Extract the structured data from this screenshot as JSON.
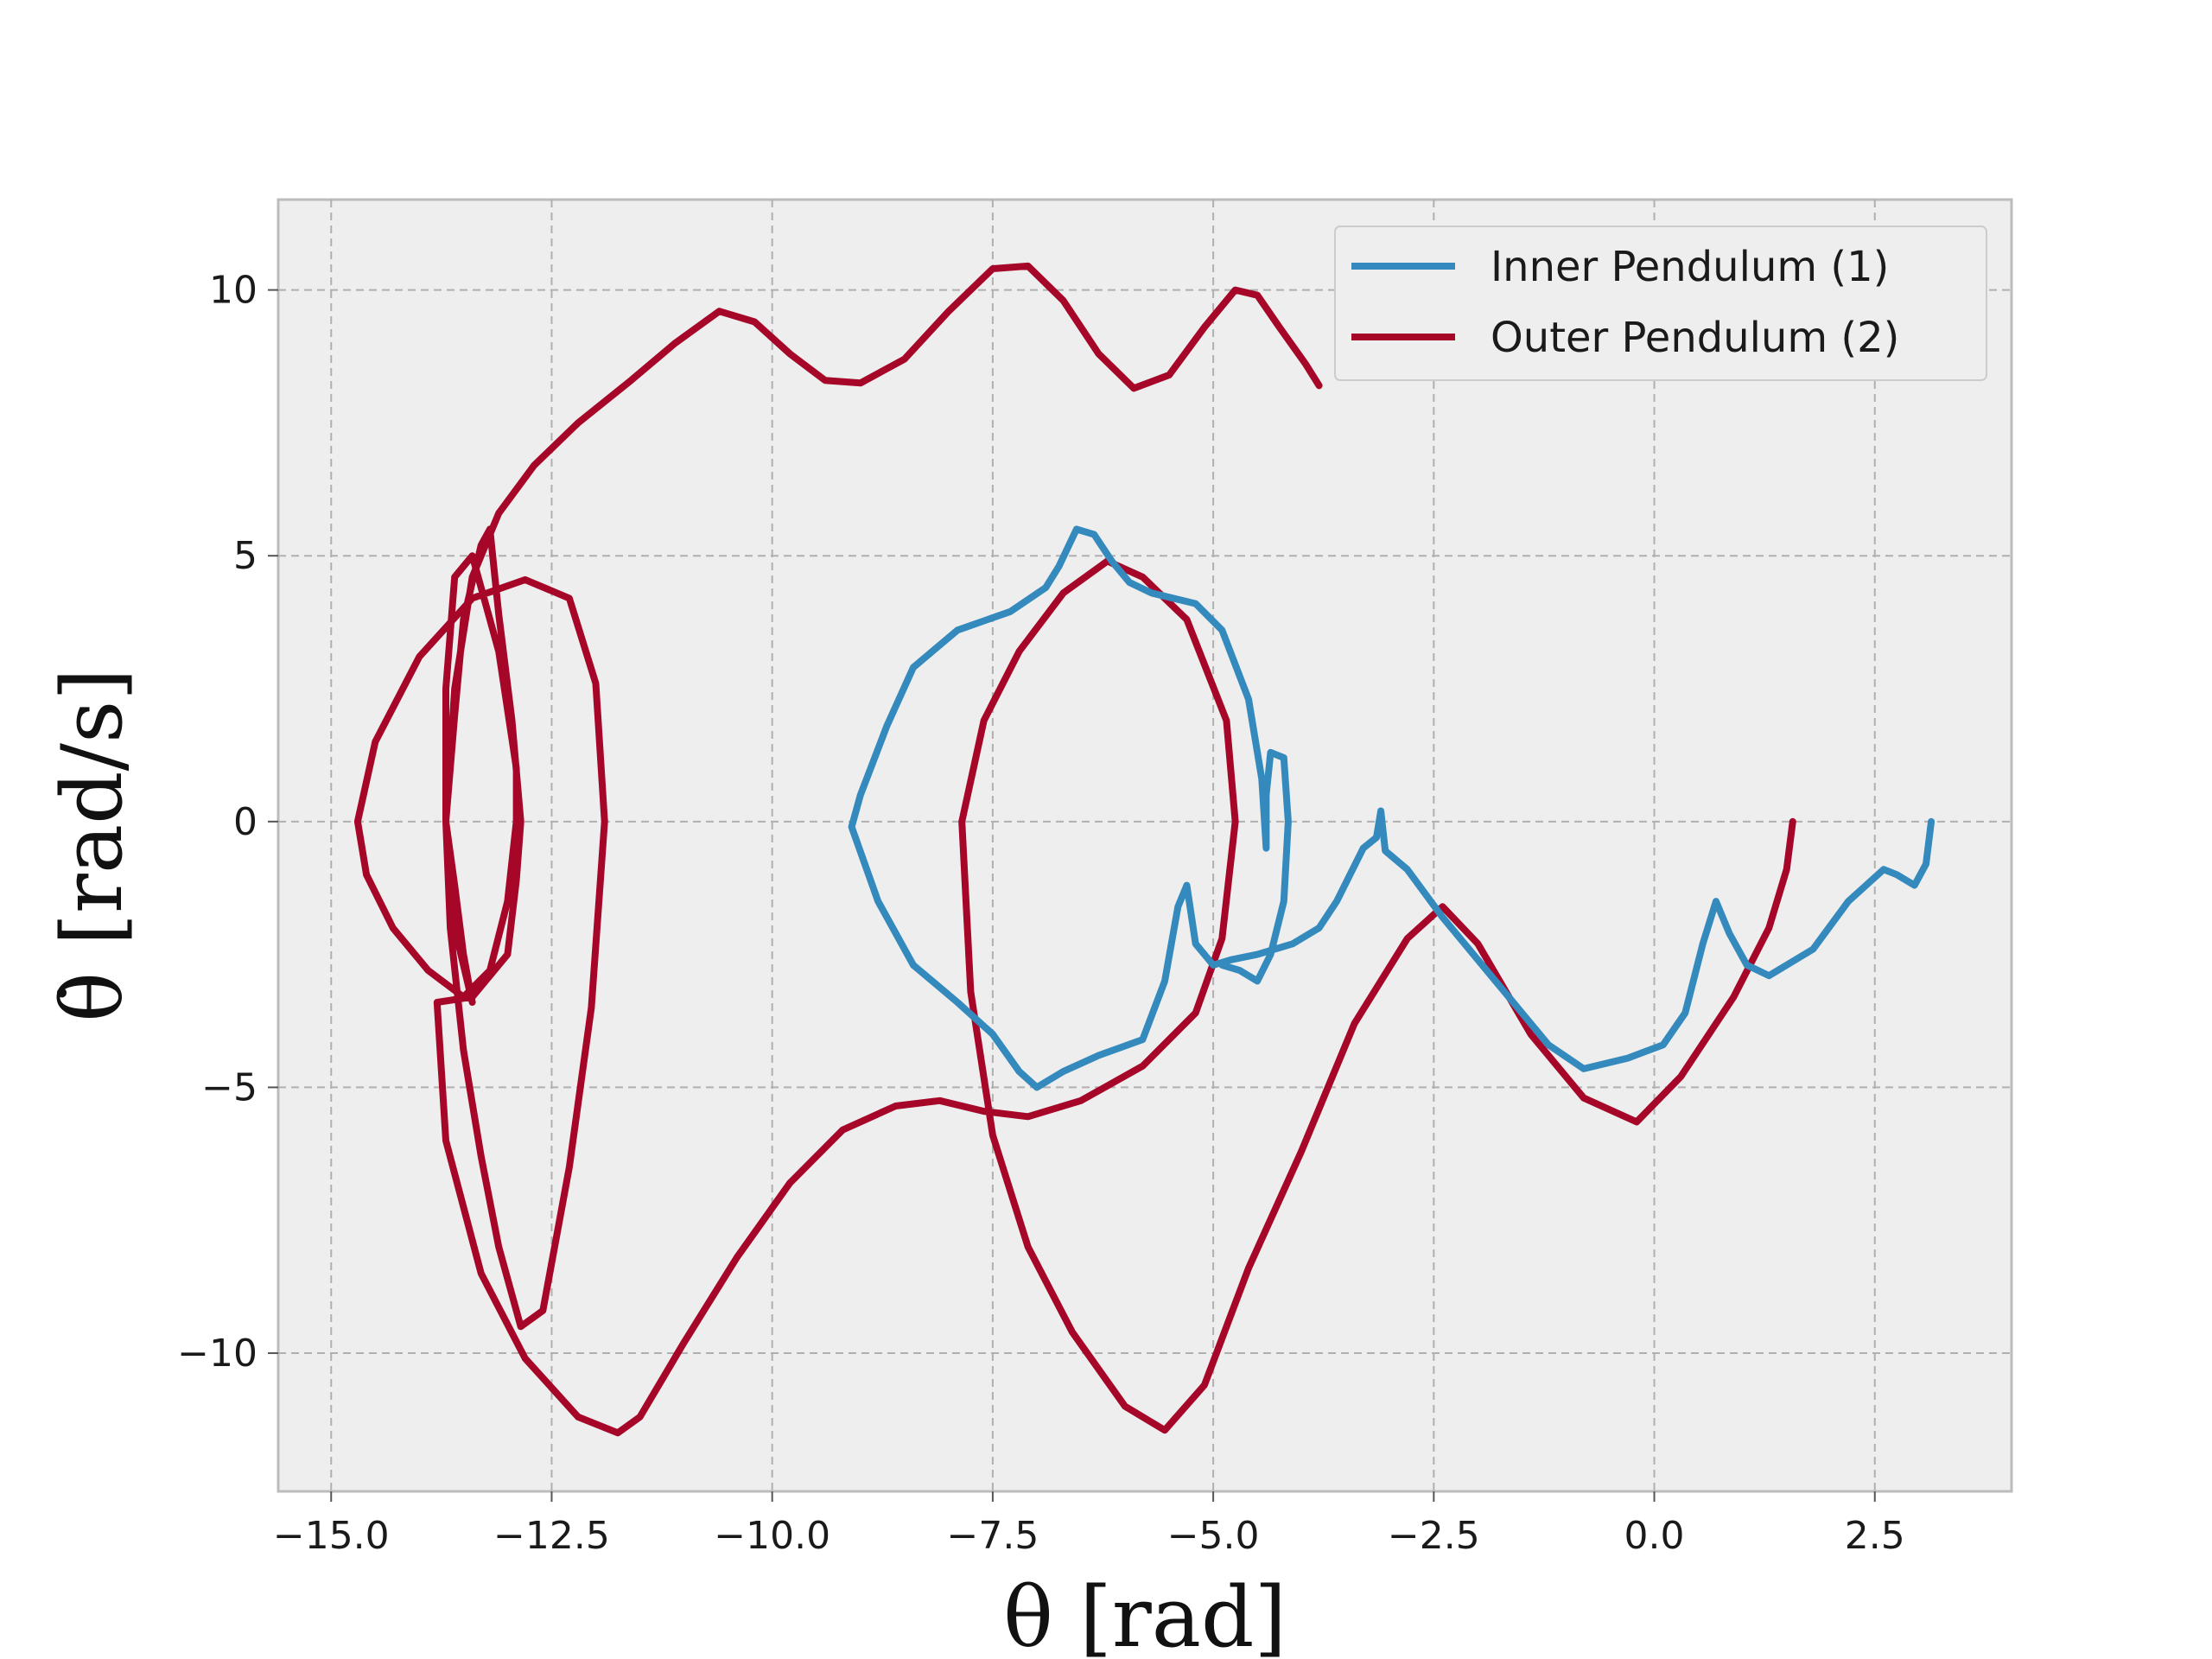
{
  "chart_data": {
    "type": "line",
    "title": "",
    "xlabel": "θ [rad]",
    "ylabel": "θ̇ [rad/s]",
    "xlim": [
      -15.6,
      4.05
    ],
    "ylim": [
      -12.6,
      11.7
    ],
    "x_ticks": [
      -15.0,
      -12.5,
      -10.0,
      -7.5,
      -5.0,
      -2.5,
      0.0,
      2.5
    ],
    "x_tick_labels": [
      "−15.0",
      "−12.5",
      "−10.0",
      "−7.5",
      "−5.0",
      "−2.5",
      "0.0",
      "2.5"
    ],
    "y_ticks": [
      -10,
      -5,
      0,
      5,
      10
    ],
    "y_tick_labels": [
      "−10",
      "−5",
      "0",
      "5",
      "10"
    ],
    "grid": true,
    "legend_position": "top-right",
    "series": [
      {
        "name": "Inner Pendulum (1)",
        "color": "#348ABD",
        "points": [
          [
            3.14,
            0
          ],
          [
            3.08,
            -0.8
          ],
          [
            2.95,
            -1.2
          ],
          [
            2.75,
            -1.0
          ],
          [
            2.6,
            -0.9
          ],
          [
            2.2,
            -1.5
          ],
          [
            1.8,
            -2.4
          ],
          [
            1.3,
            -2.9
          ],
          [
            1.05,
            -2.7
          ],
          [
            0.85,
            -2.1
          ],
          [
            0.7,
            -1.5
          ],
          [
            0.55,
            -2.3
          ],
          [
            0.35,
            -3.6
          ],
          [
            0.1,
            -4.2
          ],
          [
            -0.3,
            -4.45
          ],
          [
            -0.8,
            -4.65
          ],
          [
            -1.2,
            -4.2
          ],
          [
            -1.8,
            -3.0
          ],
          [
            -2.4,
            -1.8
          ],
          [
            -2.8,
            -0.9
          ],
          [
            -3.05,
            -0.55
          ],
          [
            -3.08,
            -0.1
          ],
          [
            -3.1,
            0.2
          ],
          [
            -3.15,
            -0.3
          ],
          [
            -3.3,
            -0.5
          ],
          [
            -3.6,
            -1.5
          ],
          [
            -3.8,
            -2.0
          ],
          [
            -4.1,
            -2.3
          ],
          [
            -4.5,
            -2.5
          ],
          [
            -4.8,
            -2.6
          ],
          [
            -5.0,
            -2.7
          ],
          [
            -5.2,
            -2.3
          ],
          [
            -5.3,
            -1.2
          ],
          [
            -5.4,
            -1.6
          ],
          [
            -5.55,
            -3.0
          ],
          [
            -5.8,
            -4.1
          ],
          [
            -6.3,
            -4.4
          ],
          [
            -6.7,
            -4.7
          ],
          [
            -7.0,
            -5.0
          ],
          [
            -7.2,
            -4.7
          ],
          [
            -7.5,
            -4.0
          ],
          [
            -7.9,
            -3.4
          ],
          [
            -8.4,
            -2.7
          ],
          [
            -8.8,
            -1.5
          ],
          [
            -9.1,
            -0.1
          ],
          [
            -9.0,
            0.5
          ],
          [
            -8.7,
            1.8
          ],
          [
            -8.4,
            2.9
          ],
          [
            -7.9,
            3.6
          ],
          [
            -7.3,
            3.95
          ],
          [
            -6.9,
            4.4
          ],
          [
            -6.75,
            4.8
          ],
          [
            -6.55,
            5.5
          ],
          [
            -6.35,
            5.4
          ],
          [
            -6.15,
            4.9
          ],
          [
            -5.95,
            4.5
          ],
          [
            -5.7,
            4.3
          ],
          [
            -5.2,
            4.1
          ],
          [
            -4.9,
            3.6
          ],
          [
            -4.6,
            2.3
          ],
          [
            -4.45,
            0.8
          ],
          [
            -4.4,
            -0.5
          ],
          [
            -4.4,
            0.5
          ],
          [
            -4.35,
            1.3
          ],
          [
            -4.2,
            1.2
          ],
          [
            -4.15,
            0
          ],
          [
            -4.2,
            -1.5
          ],
          [
            -4.35,
            -2.5
          ],
          [
            -4.5,
            -3.0
          ],
          [
            -4.7,
            -2.8
          ],
          [
            -4.9,
            -2.7
          ]
        ]
      },
      {
        "name": "Outer Pendulum (2)",
        "color": "#A60628",
        "points": [
          [
            1.57,
            0
          ],
          [
            1.5,
            -0.9
          ],
          [
            1.3,
            -2.0
          ],
          [
            0.9,
            -3.3
          ],
          [
            0.3,
            -4.8
          ],
          [
            -0.2,
            -5.65
          ],
          [
            -0.8,
            -5.2
          ],
          [
            -1.4,
            -4.0
          ],
          [
            -2.0,
            -2.3
          ],
          [
            -2.4,
            -1.6
          ],
          [
            -2.8,
            -2.2
          ],
          [
            -3.4,
            -3.8
          ],
          [
            -4.0,
            -6.2
          ],
          [
            -4.6,
            -8.4
          ],
          [
            -5.1,
            -10.6
          ],
          [
            -5.55,
            -11.45
          ],
          [
            -6.0,
            -11.0
          ],
          [
            -6.6,
            -9.6
          ],
          [
            -7.1,
            -8.0
          ],
          [
            -7.5,
            -5.9
          ],
          [
            -7.75,
            -3.2
          ],
          [
            -7.85,
            0.0
          ],
          [
            -7.6,
            1.9
          ],
          [
            -7.2,
            3.2
          ],
          [
            -6.7,
            4.3
          ],
          [
            -6.2,
            4.9
          ],
          [
            -5.8,
            4.6
          ],
          [
            -5.3,
            3.8
          ],
          [
            -4.85,
            1.9
          ],
          [
            -4.75,
            0.0
          ],
          [
            -4.9,
            -2.2
          ],
          [
            -5.2,
            -3.6
          ],
          [
            -5.8,
            -4.6
          ],
          [
            -6.5,
            -5.25
          ],
          [
            -7.1,
            -5.55
          ],
          [
            -7.6,
            -5.45
          ],
          [
            -8.1,
            -5.25
          ],
          [
            -8.6,
            -5.35
          ],
          [
            -9.2,
            -5.8
          ],
          [
            -9.8,
            -6.8
          ],
          [
            -10.4,
            -8.2
          ],
          [
            -11.0,
            -9.8
          ],
          [
            -11.5,
            -11.2
          ],
          [
            -11.75,
            -11.5
          ],
          [
            -12.2,
            -11.2
          ],
          [
            -12.8,
            -10.1
          ],
          [
            -13.3,
            -8.5
          ],
          [
            -13.7,
            -6.0
          ],
          [
            -13.8,
            -3.4
          ],
          [
            -13.4,
            -3.3
          ],
          [
            -13.0,
            -2.5
          ],
          [
            -12.9,
            -1.1
          ],
          [
            -12.85,
            0.0
          ],
          [
            -12.95,
            1.9
          ],
          [
            -13.1,
            3.9
          ],
          [
            -13.2,
            5.5
          ],
          [
            -13.3,
            5.2
          ],
          [
            -13.5,
            3.8
          ],
          [
            -13.6,
            2.0
          ],
          [
            -13.7,
            0.0
          ],
          [
            -13.65,
            -2.0
          ],
          [
            -13.5,
            -4.3
          ],
          [
            -13.3,
            -6.3
          ],
          [
            -13.1,
            -8.0
          ],
          [
            -12.85,
            -9.5
          ],
          [
            -12.6,
            -9.2
          ],
          [
            -12.3,
            -6.5
          ],
          [
            -12.05,
            -3.5
          ],
          [
            -11.9,
            0.0
          ],
          [
            -12.0,
            2.6
          ],
          [
            -12.3,
            4.2
          ],
          [
            -12.8,
            4.55
          ],
          [
            -13.4,
            4.2
          ],
          [
            -14.0,
            3.1
          ],
          [
            -14.5,
            1.5
          ],
          [
            -14.7,
            0.0
          ],
          [
            -14.6,
            -1.0
          ],
          [
            -14.3,
            -2.0
          ],
          [
            -13.9,
            -2.8
          ],
          [
            -13.5,
            -3.3
          ],
          [
            -13.2,
            -2.8
          ],
          [
            -13.0,
            -1.5
          ],
          [
            -12.9,
            0.0
          ],
          [
            -12.9,
            1.0
          ],
          [
            -13.1,
            3.2
          ],
          [
            -13.4,
            5.0
          ],
          [
            -13.6,
            4.6
          ],
          [
            -13.7,
            2.5
          ],
          [
            -13.7,
            0.0
          ],
          [
            -13.6,
            -1.2
          ],
          [
            -13.5,
            -2.5
          ],
          [
            -13.4,
            -3.4
          ],
          [
            -13.6,
            -2.0
          ],
          [
            -13.7,
            0.0
          ],
          [
            -13.6,
            2.5
          ],
          [
            -13.4,
            4.6
          ],
          [
            -13.1,
            5.8
          ],
          [
            -12.7,
            6.7
          ],
          [
            -12.2,
            7.5
          ],
          [
            -11.6,
            8.3
          ],
          [
            -11.1,
            9.0
          ],
          [
            -10.6,
            9.6
          ],
          [
            -10.2,
            9.4
          ],
          [
            -9.8,
            8.8
          ],
          [
            -9.4,
            8.3
          ],
          [
            -9.0,
            8.25
          ],
          [
            -8.5,
            8.7
          ],
          [
            -8.0,
            9.6
          ],
          [
            -7.5,
            10.4
          ],
          [
            -7.1,
            10.45
          ],
          [
            -6.7,
            9.8
          ],
          [
            -6.3,
            8.8
          ],
          [
            -5.9,
            8.15
          ],
          [
            -5.5,
            8.4
          ],
          [
            -5.1,
            9.3
          ],
          [
            -4.75,
            10.0
          ],
          [
            -4.5,
            9.9
          ],
          [
            -4.25,
            9.3
          ],
          [
            -3.95,
            8.6
          ],
          [
            -3.8,
            8.2
          ]
        ]
      }
    ]
  }
}
